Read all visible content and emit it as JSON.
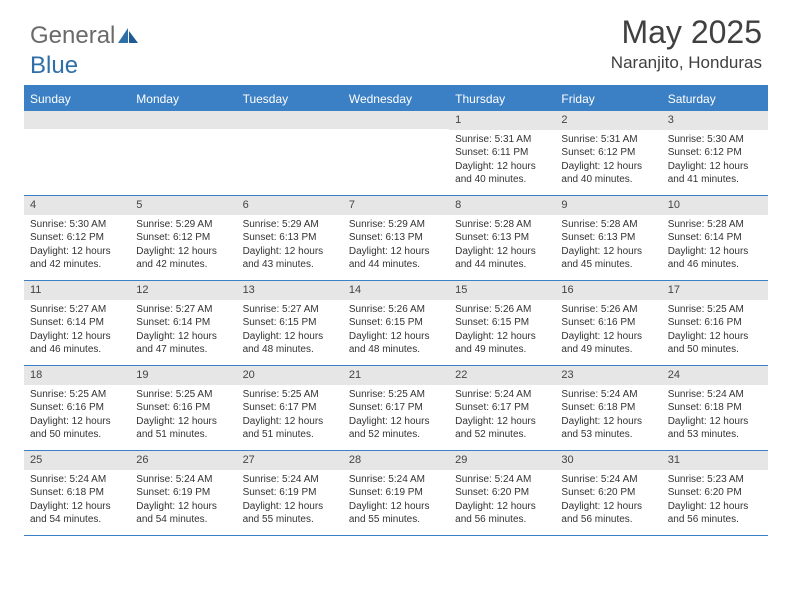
{
  "logo": {
    "general": "General",
    "blue": "Blue"
  },
  "title": {
    "month": "May 2025",
    "location": "Naranjito, Honduras"
  },
  "colors": {
    "header_blue": "#3b7fc4",
    "daynum_bg": "#e6e6e6",
    "text": "#333333",
    "logo_gray": "#6a6a6a",
    "logo_blue": "#2f6fa8"
  },
  "daysOfWeek": [
    "Sunday",
    "Monday",
    "Tuesday",
    "Wednesday",
    "Thursday",
    "Friday",
    "Saturday"
  ],
  "weeks": [
    [
      null,
      null,
      null,
      null,
      {
        "n": "1",
        "sr": "5:31 AM",
        "ss": "6:11 PM",
        "dl": "12 hours and 40 minutes."
      },
      {
        "n": "2",
        "sr": "5:31 AM",
        "ss": "6:12 PM",
        "dl": "12 hours and 40 minutes."
      },
      {
        "n": "3",
        "sr": "5:30 AM",
        "ss": "6:12 PM",
        "dl": "12 hours and 41 minutes."
      }
    ],
    [
      {
        "n": "4",
        "sr": "5:30 AM",
        "ss": "6:12 PM",
        "dl": "12 hours and 42 minutes."
      },
      {
        "n": "5",
        "sr": "5:29 AM",
        "ss": "6:12 PM",
        "dl": "12 hours and 42 minutes."
      },
      {
        "n": "6",
        "sr": "5:29 AM",
        "ss": "6:13 PM",
        "dl": "12 hours and 43 minutes."
      },
      {
        "n": "7",
        "sr": "5:29 AM",
        "ss": "6:13 PM",
        "dl": "12 hours and 44 minutes."
      },
      {
        "n": "8",
        "sr": "5:28 AM",
        "ss": "6:13 PM",
        "dl": "12 hours and 44 minutes."
      },
      {
        "n": "9",
        "sr": "5:28 AM",
        "ss": "6:13 PM",
        "dl": "12 hours and 45 minutes."
      },
      {
        "n": "10",
        "sr": "5:28 AM",
        "ss": "6:14 PM",
        "dl": "12 hours and 46 minutes."
      }
    ],
    [
      {
        "n": "11",
        "sr": "5:27 AM",
        "ss": "6:14 PM",
        "dl": "12 hours and 46 minutes."
      },
      {
        "n": "12",
        "sr": "5:27 AM",
        "ss": "6:14 PM",
        "dl": "12 hours and 47 minutes."
      },
      {
        "n": "13",
        "sr": "5:27 AM",
        "ss": "6:15 PM",
        "dl": "12 hours and 48 minutes."
      },
      {
        "n": "14",
        "sr": "5:26 AM",
        "ss": "6:15 PM",
        "dl": "12 hours and 48 minutes."
      },
      {
        "n": "15",
        "sr": "5:26 AM",
        "ss": "6:15 PM",
        "dl": "12 hours and 49 minutes."
      },
      {
        "n": "16",
        "sr": "5:26 AM",
        "ss": "6:16 PM",
        "dl": "12 hours and 49 minutes."
      },
      {
        "n": "17",
        "sr": "5:25 AM",
        "ss": "6:16 PM",
        "dl": "12 hours and 50 minutes."
      }
    ],
    [
      {
        "n": "18",
        "sr": "5:25 AM",
        "ss": "6:16 PM",
        "dl": "12 hours and 50 minutes."
      },
      {
        "n": "19",
        "sr": "5:25 AM",
        "ss": "6:16 PM",
        "dl": "12 hours and 51 minutes."
      },
      {
        "n": "20",
        "sr": "5:25 AM",
        "ss": "6:17 PM",
        "dl": "12 hours and 51 minutes."
      },
      {
        "n": "21",
        "sr": "5:25 AM",
        "ss": "6:17 PM",
        "dl": "12 hours and 52 minutes."
      },
      {
        "n": "22",
        "sr": "5:24 AM",
        "ss": "6:17 PM",
        "dl": "12 hours and 52 minutes."
      },
      {
        "n": "23",
        "sr": "5:24 AM",
        "ss": "6:18 PM",
        "dl": "12 hours and 53 minutes."
      },
      {
        "n": "24",
        "sr": "5:24 AM",
        "ss": "6:18 PM",
        "dl": "12 hours and 53 minutes."
      }
    ],
    [
      {
        "n": "25",
        "sr": "5:24 AM",
        "ss": "6:18 PM",
        "dl": "12 hours and 54 minutes."
      },
      {
        "n": "26",
        "sr": "5:24 AM",
        "ss": "6:19 PM",
        "dl": "12 hours and 54 minutes."
      },
      {
        "n": "27",
        "sr": "5:24 AM",
        "ss": "6:19 PM",
        "dl": "12 hours and 55 minutes."
      },
      {
        "n": "28",
        "sr": "5:24 AM",
        "ss": "6:19 PM",
        "dl": "12 hours and 55 minutes."
      },
      {
        "n": "29",
        "sr": "5:24 AM",
        "ss": "6:20 PM",
        "dl": "12 hours and 56 minutes."
      },
      {
        "n": "30",
        "sr": "5:24 AM",
        "ss": "6:20 PM",
        "dl": "12 hours and 56 minutes."
      },
      {
        "n": "31",
        "sr": "5:23 AM",
        "ss": "6:20 PM",
        "dl": "12 hours and 56 minutes."
      }
    ]
  ],
  "labels": {
    "sunrise": "Sunrise:",
    "sunset": "Sunset:",
    "daylight": "Daylight:"
  }
}
